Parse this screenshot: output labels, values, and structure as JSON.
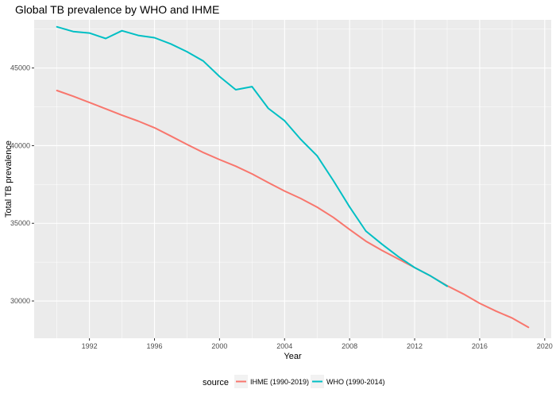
{
  "chart_data": {
    "type": "line",
    "title": "Global TB prevalence by WHO and IHME",
    "xlabel": "Year",
    "ylabel": "Total TB prevalence",
    "xlim": [
      1988.6,
      2020.4
    ],
    "ylim": [
      27600,
      48100
    ],
    "x_ticks": [
      1992,
      1996,
      2000,
      2004,
      2008,
      2012,
      2016,
      2020
    ],
    "y_ticks": [
      30000,
      35000,
      40000,
      45000
    ],
    "grid": true,
    "legend": {
      "title": "source",
      "placement": "bottom"
    },
    "series": [
      {
        "name": "IHME (1990-2019)",
        "color": "#F8766D",
        "x": [
          1990,
          1991,
          1992,
          1993,
          1994,
          1995,
          1996,
          1997,
          1998,
          1999,
          2000,
          2001,
          2002,
          2003,
          2004,
          2005,
          2006,
          2007,
          2008,
          2009,
          2010,
          2011,
          2012,
          2013,
          2014,
          2015,
          2016,
          2017,
          2018,
          2019
        ],
        "y": [
          43550,
          43180,
          42780,
          42370,
          41960,
          41580,
          41150,
          40620,
          40080,
          39560,
          39100,
          38680,
          38180,
          37620,
          37080,
          36600,
          36040,
          35380,
          34600,
          33850,
          33250,
          32700,
          32150,
          31600,
          30980,
          30450,
          29850,
          29350,
          28900,
          28300
        ]
      },
      {
        "name": "WHO (1990-2014)",
        "color": "#00BFC4",
        "x": [
          1990,
          1991,
          1992,
          1993,
          1994,
          1995,
          1996,
          1997,
          1998,
          1999,
          2000,
          2001,
          2002,
          2003,
          2004,
          2005,
          2006,
          2007,
          2008,
          2009,
          2010,
          2011,
          2012,
          2013,
          2014
        ],
        "y": [
          47650,
          47350,
          47250,
          46900,
          47400,
          47100,
          46950,
          46550,
          46050,
          45450,
          44450,
          43600,
          43800,
          42400,
          41600,
          40400,
          39350,
          37750,
          36050,
          34500,
          33650,
          32850,
          32150,
          31600,
          30950
        ]
      }
    ]
  }
}
